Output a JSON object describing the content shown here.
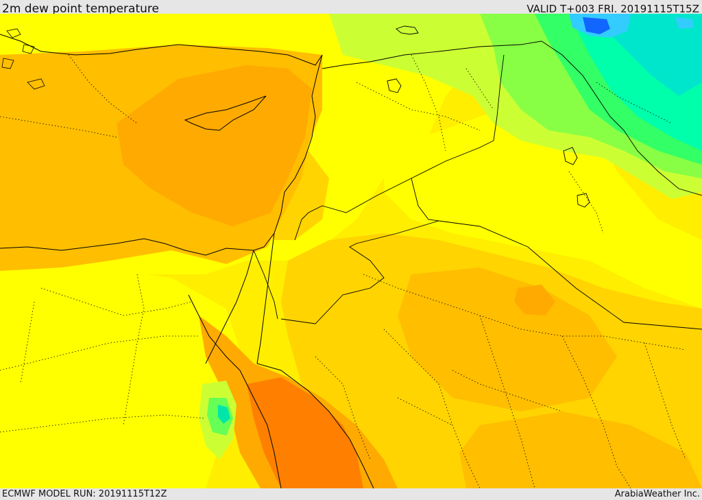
{
  "header": {
    "title": "2m dew point temperature",
    "valid": "VALID T+003 FRI. 20191115T15Z"
  },
  "footer": {
    "model_run": "ECMWF MODEL RUN: 20191115T12Z",
    "credit": "ArabiaWeather Inc."
  },
  "map": {
    "palette": {
      "yellow": "#ffff00",
      "light_yellow": "#ffee00",
      "golden": "#ffd400",
      "orange_light": "#ffbe00",
      "orange": "#ffaa00",
      "dark_orange": "#ff8000",
      "yellow_green": "#ccff33",
      "light_green": "#88ff44",
      "green": "#33ff66",
      "aqua": "#00ffaa",
      "teal": "#00e6cc",
      "light_blue": "#33ccff",
      "blue": "#1166ff"
    }
  }
}
